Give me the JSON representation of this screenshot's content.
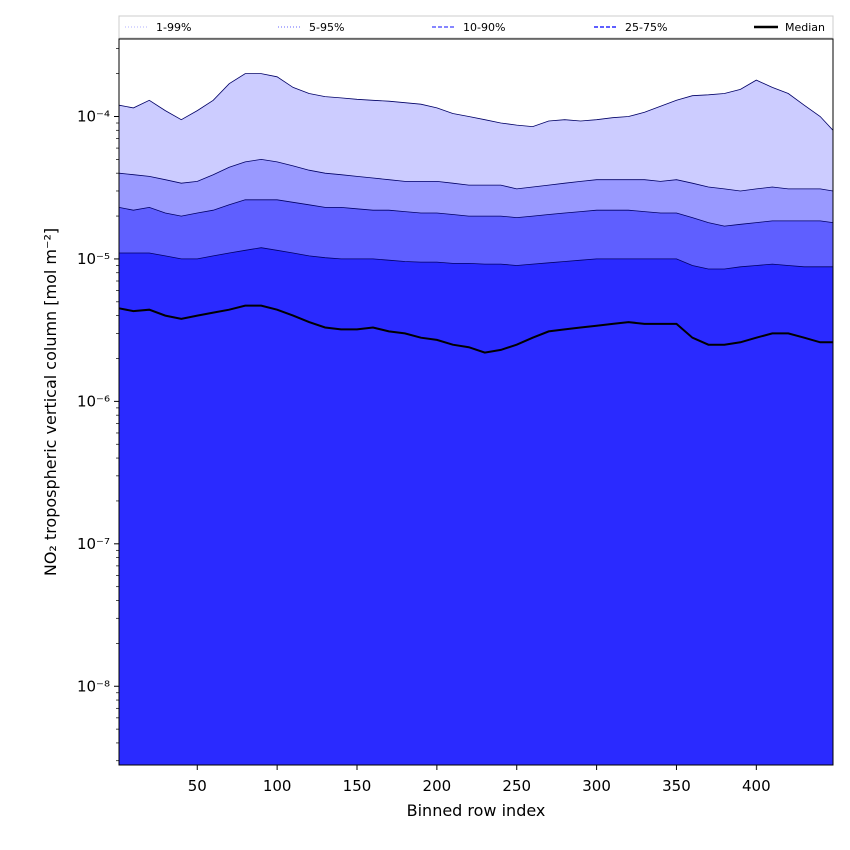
{
  "chart_data": {
    "type": "area",
    "xlabel": "Binned row index",
    "ylabel": "NO₂ tropospheric vertical column [mol m⁻²]",
    "xlim": [
      1,
      448
    ],
    "ylim": [
      2.8e-09,
      0.00035
    ],
    "yscale": "log",
    "grid": false,
    "legend_position": "top",
    "x_ticks": [
      50,
      100,
      150,
      200,
      250,
      300,
      350,
      400
    ],
    "y_ticks": [
      {
        "value": 1e-08,
        "label": "10⁻⁸"
      },
      {
        "value": 1e-07,
        "label": "10⁻⁷"
      },
      {
        "value": 1e-06,
        "label": "10⁻⁶"
      },
      {
        "value": 1e-05,
        "label": "10⁻⁵"
      },
      {
        "value": 0.0001,
        "label": "10⁻⁴"
      }
    ],
    "x": [
      1,
      10,
      20,
      30,
      40,
      50,
      60,
      70,
      80,
      90,
      100,
      110,
      120,
      130,
      140,
      150,
      160,
      170,
      180,
      190,
      200,
      210,
      220,
      230,
      240,
      250,
      260,
      270,
      280,
      290,
      300,
      310,
      320,
      330,
      340,
      350,
      360,
      370,
      380,
      390,
      400,
      410,
      420,
      430,
      440,
      448
    ],
    "series": [
      {
        "name": "1-99%",
        "color": "#ccccff",
        "style": "dotted",
        "lower": [
          2.8e-09,
          2.8e-09,
          2.8e-09,
          2.8e-09,
          2.8e-09,
          2.8e-09,
          2.8e-09,
          2.8e-09,
          2.8e-09,
          2.8e-09,
          2.8e-09,
          2.8e-09,
          2.8e-09,
          2.8e-09,
          2.8e-09,
          2.8e-09,
          2.8e-09,
          2.8e-09,
          2.8e-09,
          2.8e-09,
          2.8e-09,
          2.8e-09,
          2.8e-09,
          2.8e-09,
          2.8e-09,
          2.8e-09,
          2.8e-09,
          2.8e-09,
          2.8e-09,
          2.8e-09,
          2.8e-09,
          2.8e-09,
          2.8e-09,
          2.8e-09,
          2.8e-09,
          2.8e-09,
          2.8e-09,
          2.8e-09,
          2.8e-09,
          2.8e-09,
          2.8e-09,
          2.8e-09,
          2.8e-09,
          2.8e-09,
          2.8e-09,
          2.8e-09
        ],
        "upper": [
          0.00012,
          0.000115,
          0.00013,
          0.00011,
          9.5e-05,
          0.00011,
          0.00013,
          0.00017,
          0.0002,
          0.0002,
          0.00019,
          0.00016,
          0.000145,
          0.000138,
          0.000135,
          0.000132,
          0.00013,
          0.000128,
          0.000125,
          0.000122,
          0.000115,
          0.000105,
          0.0001,
          9.5e-05,
          9e-05,
          8.7e-05,
          8.5e-05,
          9.3e-05,
          9.5e-05,
          9.3e-05,
          9.5e-05,
          9.8e-05,
          0.0001,
          0.000107,
          0.000118,
          0.00013,
          0.00014,
          0.000142,
          0.000145,
          0.000155,
          0.00018,
          0.00016,
          0.000145,
          0.00012,
          0.0001,
          8e-05
        ]
      },
      {
        "name": "5-95%",
        "color": "#9999ff",
        "style": "dotted",
        "lower": [
          1e-07,
          2e-08,
          1e-07,
          1e-08,
          1e-08,
          1e-07,
          1e-07,
          3e-07,
          5e-07,
          6e-07,
          4e-07,
          2e-07,
          1e-07,
          2.8e-09,
          2.8e-09,
          2.8e-09,
          2.8e-09,
          2.8e-09,
          2.8e-09,
          2.8e-09,
          2.8e-09,
          2.8e-09,
          2.8e-09,
          2.8e-09,
          2.8e-09,
          2.8e-09,
          2.8e-09,
          2.8e-09,
          2.8e-09,
          2.8e-09,
          2.8e-09,
          2.8e-09,
          2.8e-09,
          2.8e-09,
          2.8e-09,
          2.8e-09,
          2.8e-09,
          2.8e-09,
          2.8e-09,
          2.8e-09,
          2.8e-09,
          2.8e-09,
          2.8e-09,
          2.8e-09,
          2.8e-09,
          2.8e-09
        ],
        "upper": [
          4e-05,
          3.9e-05,
          3.8e-05,
          3.6e-05,
          3.4e-05,
          3.5e-05,
          3.9e-05,
          4.4e-05,
          4.8e-05,
          5e-05,
          4.8e-05,
          4.5e-05,
          4.2e-05,
          4e-05,
          3.9e-05,
          3.8e-05,
          3.7e-05,
          3.6e-05,
          3.5e-05,
          3.5e-05,
          3.5e-05,
          3.4e-05,
          3.3e-05,
          3.3e-05,
          3.3e-05,
          3.1e-05,
          3.2e-05,
          3.3e-05,
          3.4e-05,
          3.5e-05,
          3.6e-05,
          3.6e-05,
          3.6e-05,
          3.6e-05,
          3.5e-05,
          3.6e-05,
          3.4e-05,
          3.2e-05,
          3.1e-05,
          3e-05,
          3.1e-05,
          3.2e-05,
          3.1e-05,
          3.1e-05,
          3.1e-05,
          3e-05
        ]
      },
      {
        "name": "10-90%",
        "color": "#5f5fff",
        "style": "dashed",
        "lower": [
          2.8e-09,
          2.8e-09,
          2.8e-09,
          2.8e-09,
          2.8e-09,
          2.8e-09,
          2.8e-09,
          2.8e-09,
          2.8e-09,
          2.8e-09,
          2.8e-09,
          2.8e-09,
          2.8e-09,
          2.8e-09,
          2.8e-09,
          2.8e-09,
          2.8e-09,
          2.8e-09,
          2.8e-09,
          2.8e-09,
          2.8e-09,
          2.8e-09,
          2.8e-09,
          2.8e-09,
          2.8e-09,
          2.8e-09,
          2.8e-09,
          2.8e-09,
          2.8e-09,
          2.8e-09,
          2.8e-09,
          2.8e-09,
          2.8e-09,
          2.8e-09,
          2.8e-09,
          2.8e-09,
          2.8e-09,
          2.8e-09,
          2.8e-09,
          2.8e-09,
          2.8e-09,
          2.8e-09,
          2.8e-09,
          2.8e-09,
          2.8e-09,
          2.8e-09
        ],
        "upper": [
          2.3e-05,
          2.2e-05,
          2.3e-05,
          2.1e-05,
          2e-05,
          2.1e-05,
          2.2e-05,
          2.4e-05,
          2.6e-05,
          2.6e-05,
          2.6e-05,
          2.5e-05,
          2.4e-05,
          2.3e-05,
          2.3e-05,
          2.25e-05,
          2.2e-05,
          2.2e-05,
          2.15e-05,
          2.1e-05,
          2.1e-05,
          2.05e-05,
          2e-05,
          2e-05,
          2e-05,
          1.95e-05,
          2e-05,
          2.05e-05,
          2.1e-05,
          2.15e-05,
          2.2e-05,
          2.2e-05,
          2.2e-05,
          2.15e-05,
          2.1e-05,
          2.1e-05,
          1.95e-05,
          1.8e-05,
          1.7e-05,
          1.75e-05,
          1.8e-05,
          1.85e-05,
          1.85e-05,
          1.85e-05,
          1.85e-05,
          1.8e-05
        ]
      },
      {
        "name": "25-75%",
        "color": "#2a2aff",
        "style": "dashed",
        "lower": [
          2.8e-09,
          2.8e-09,
          2.8e-09,
          2.8e-09,
          2.8e-09,
          2.8e-09,
          2.8e-09,
          2.8e-09,
          2.8e-09,
          2.8e-09,
          2.8e-09,
          2.8e-09,
          2.8e-09,
          2.8e-09,
          2.8e-09,
          2.8e-09,
          2.8e-09,
          2.8e-09,
          2.8e-09,
          2.8e-09,
          2.8e-09,
          2.8e-09,
          2.8e-09,
          2.8e-09,
          2.8e-09,
          2.8e-09,
          2.8e-09,
          2.8e-09,
          2.8e-09,
          2.8e-09,
          2.8e-09,
          2.8e-09,
          2.8e-09,
          2.8e-09,
          2.8e-09,
          2.8e-09,
          2.8e-09,
          2.8e-09,
          2.8e-09,
          2.8e-09,
          2.8e-09,
          2.8e-09,
          2.8e-09,
          2.8e-09,
          2.8e-09,
          2.8e-09
        ],
        "upper": [
          1.1e-05,
          1.1e-05,
          1.1e-05,
          1.05e-05,
          1e-05,
          1e-05,
          1.05e-05,
          1.1e-05,
          1.15e-05,
          1.2e-05,
          1.15e-05,
          1.1e-05,
          1.05e-05,
          1.02e-05,
          1e-05,
          1e-05,
          1e-05,
          9.8e-06,
          9.6e-06,
          9.5e-06,
          9.5e-06,
          9.3e-06,
          9.3e-06,
          9.2e-06,
          9.2e-06,
          9e-06,
          9.2e-06,
          9.4e-06,
          9.6e-06,
          9.8e-06,
          1e-05,
          1e-05,
          1e-05,
          1e-05,
          1e-05,
          1e-05,
          9e-06,
          8.5e-06,
          8.5e-06,
          8.8e-06,
          9e-06,
          9.2e-06,
          9e-06,
          8.8e-06,
          8.8e-06,
          8.8e-06
        ]
      },
      {
        "name": "Median",
        "color": "#000000",
        "style": "solid",
        "values": [
          4.5e-06,
          4.3e-06,
          4.4e-06,
          4e-06,
          3.8e-06,
          4e-06,
          4.2e-06,
          4.4e-06,
          4.7e-06,
          4.7e-06,
          4.4e-06,
          4e-06,
          3.6e-06,
          3.3e-06,
          3.2e-06,
          3.2e-06,
          3.3e-06,
          3.1e-06,
          3e-06,
          2.8e-06,
          2.7e-06,
          2.5e-06,
          2.4e-06,
          2.2e-06,
          2.3e-06,
          2.5e-06,
          2.8e-06,
          3.1e-06,
          3.2e-06,
          3.3e-06,
          3.4e-06,
          3.5e-06,
          3.6e-06,
          3.5e-06,
          3.5e-06,
          3.5e-06,
          2.8e-06,
          2.5e-06,
          2.5e-06,
          2.6e-06,
          2.8e-06,
          3e-06,
          3e-06,
          2.8e-06,
          2.6e-06,
          2.6e-06
        ]
      }
    ]
  }
}
